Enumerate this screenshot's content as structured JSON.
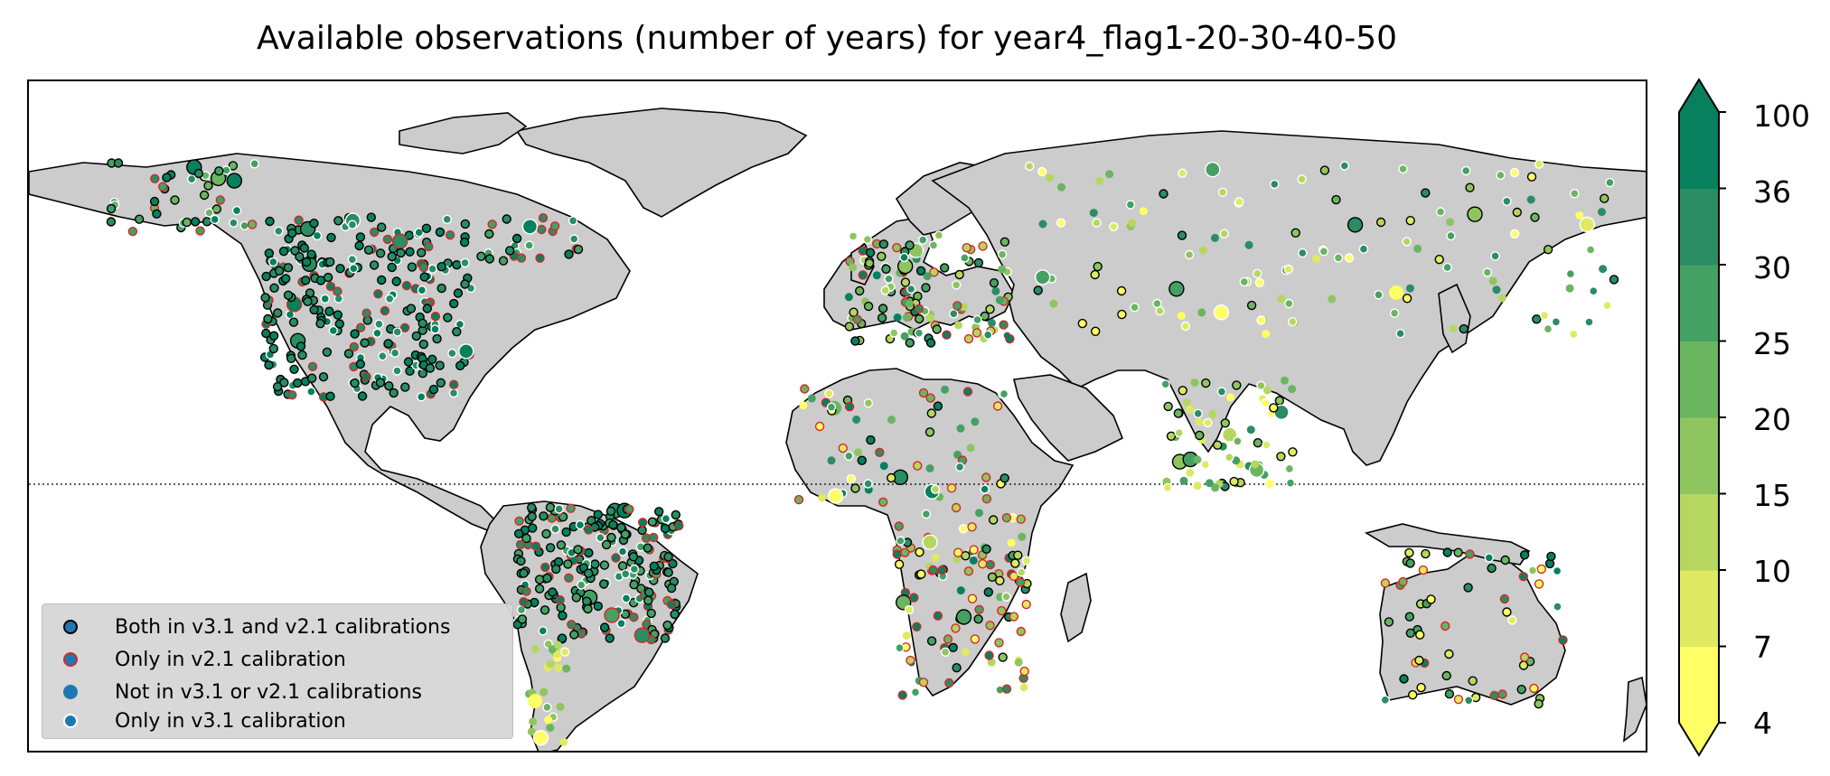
{
  "title": "Available observations (number of years) for year4_flag1-20-30-40-50",
  "legend": {
    "items": [
      {
        "label": "Both in v3.1 and v2.1 calibrations",
        "fill": "#1f77b4",
        "edge": "#000000"
      },
      {
        "label": "Only in v2.1 calibration",
        "fill": "#1f77b4",
        "edge": "#d62728"
      },
      {
        "label": "Not in v3.1 or v2.1 calibrations",
        "fill": "#1f77b4",
        "edge": "none"
      },
      {
        "label": "Only in v3.1 calibration",
        "fill": "#1f77b4",
        "edge": "#ffffff"
      }
    ]
  },
  "colorbar": {
    "ticks": [
      "4",
      "7",
      "10",
      "15",
      "20",
      "25",
      "30",
      "36",
      "100"
    ],
    "colors": [
      "#ffff66",
      "#dfea62",
      "#b5d760",
      "#8fc55f",
      "#6bb560",
      "#45a064",
      "#2a8d63",
      "#07805e"
    ],
    "extend": "both"
  },
  "colors": {
    "land": "#cccccc",
    "coast": "#000000",
    "both": "#000000",
    "v21_only": "#d62728",
    "v31_only": "#ffffff"
  },
  "map": {
    "projection": "PlateCarree",
    "equator_line": "dotted"
  }
}
